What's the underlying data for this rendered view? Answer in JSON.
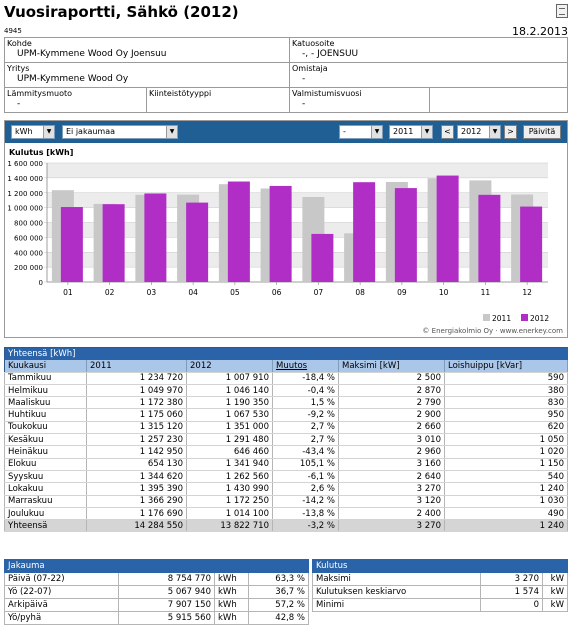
{
  "header": {
    "title": "Vuosiraportti, Sähkö (2012)",
    "report_id": "4945",
    "date": "18.2.2013"
  },
  "info": {
    "kohde_label": "Kohde",
    "kohde_value": "UPM-Kymmene Wood Oy Joensuu",
    "katuosoite_label": "Katuosoite",
    "katuosoite_value": "-, - JOENSUU",
    "yritys_label": "Yritys",
    "yritys_value": "UPM-Kymmene Wood Oy",
    "omistaja_label": "Omistaja",
    "omistaja_value": "-",
    "lammitysmuoto_label": "Lämmitysmuoto",
    "lammitysmuoto_value": "-",
    "kiinteistotyyppi_label": "Kiinteistötyyppi",
    "kiinteistotyyppi_value": "",
    "valmistumisvuosi_label": "Valmistumisvuosi",
    "valmistumisvuosi_value": "-"
  },
  "toolbar": {
    "unit": "kWh",
    "distribution": "Ei jakaumaa",
    "extra": "-",
    "year_from": "2011",
    "year_to": "2012",
    "prev": "<",
    "next": ">",
    "update": "Päivitä"
  },
  "colors": {
    "s2011": "#c8c8c8",
    "s2012": "#b02ec6",
    "header": "#2b63a8",
    "colhdr": "#aac6e8"
  },
  "chart_data": {
    "type": "bar",
    "ylabel": "Kulutus [kWh]",
    "categories": [
      "01",
      "02",
      "03",
      "04",
      "05",
      "06",
      "07",
      "08",
      "09",
      "10",
      "11",
      "12"
    ],
    "yticks": [
      "0",
      "200 000",
      "400 000",
      "600 000",
      "800 000",
      "1 000 000",
      "1 200 000",
      "1 400 000",
      "1 600 000"
    ],
    "ylim": [
      0,
      1600000
    ],
    "series": [
      {
        "name": "2011",
        "values": [
          1234720,
          1049970,
          1172380,
          1175060,
          1315120,
          1257230,
          1142950,
          654130,
          1344620,
          1395390,
          1366290,
          1176690
        ]
      },
      {
        "name": "2012",
        "values": [
          1007910,
          1046140,
          1190350,
          1067530,
          1351000,
          1291480,
          646460,
          1341940,
          1262560,
          1430990,
          1172250,
          1014100
        ]
      }
    ],
    "grid": true,
    "legend": "bottom-right",
    "credit": "© Energiakolmio Oy · www.enerkey.com"
  },
  "monthly": {
    "title": "Yhteensä [kWh]",
    "columns": [
      "Kuukausi",
      "2011",
      "2012",
      "Muutos",
      "Maksimi [kW]",
      "Loishuippu [kVar]"
    ],
    "rows": [
      [
        "Tammikuu",
        "1 234 720",
        "1 007 910",
        "-18,4 %",
        "2 500",
        "590"
      ],
      [
        "Helmikuu",
        "1 049 970",
        "1 046 140",
        "-0,4 %",
        "2 870",
        "380"
      ],
      [
        "Maaliskuu",
        "1 172 380",
        "1 190 350",
        "1,5 %",
        "2 790",
        "830"
      ],
      [
        "Huhtikuu",
        "1 175 060",
        "1 067 530",
        "-9,2 %",
        "2 900",
        "950"
      ],
      [
        "Toukokuu",
        "1 315 120",
        "1 351 000",
        "2,7 %",
        "2 660",
        "620"
      ],
      [
        "Kesäkuu",
        "1 257 230",
        "1 291 480",
        "2,7 %",
        "3 010",
        "1 050"
      ],
      [
        "Heinäkuu",
        "1 142 950",
        "646 460",
        "-43,4 %",
        "2 960",
        "1 020"
      ],
      [
        "Elokuu",
        "654 130",
        "1 341 940",
        "105,1 %",
        "3 160",
        "1 150"
      ],
      [
        "Syyskuu",
        "1 344 620",
        "1 262 560",
        "-6,1 %",
        "2 640",
        "540"
      ],
      [
        "Lokakuu",
        "1 395 390",
        "1 430 990",
        "2,6 %",
        "3 270",
        "1 240"
      ],
      [
        "Marraskuu",
        "1 366 290",
        "1 172 250",
        "-14,2 %",
        "3 120",
        "1 030"
      ],
      [
        "Joulukuu",
        "1 176 690",
        "1 014 100",
        "-13,8 %",
        "2 400",
        "490"
      ]
    ],
    "total": [
      "Yhteensä",
      "14 284 550",
      "13 822 710",
      "-3,2 %",
      "3 270",
      "1 240"
    ]
  },
  "distribution": {
    "title": "Jakauma",
    "rows": [
      [
        "Päivä (07-22)",
        "8 754 770",
        "kWh",
        "63,3 %"
      ],
      [
        "Yö (22-07)",
        "5 067 940",
        "kWh",
        "36,7 %"
      ],
      [
        "Arkipäivä",
        "7 907 150",
        "kWh",
        "57,2 %"
      ],
      [
        "Yö/pyhä",
        "5 915 560",
        "kWh",
        "42,8 %"
      ]
    ]
  },
  "consumption": {
    "title": "Kulutus",
    "rows": [
      [
        "Maksimi",
        "3 270",
        "kW"
      ],
      [
        "Kulutuksen keskiarvo",
        "1 574",
        "kW"
      ],
      [
        "Minimi",
        "0",
        "kW"
      ]
    ]
  }
}
